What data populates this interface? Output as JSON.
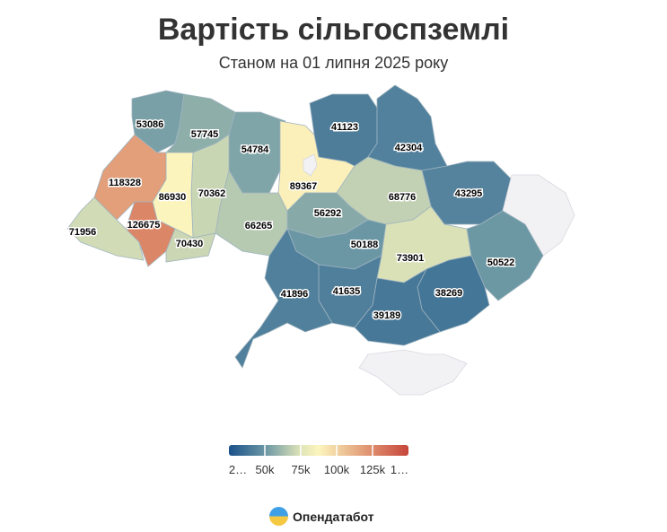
{
  "title": "Вартість сільгоспземлі",
  "subtitle": "Станом на 01 липня 2025 року",
  "brand": "Опендатабот",
  "chart_data": {
    "type": "choropleth",
    "title": "Вартість сільгоспземлі",
    "subtitle": "Станом на 01 липня 2025 року",
    "regions": [
      {
        "id": "volyn",
        "value": 53086
      },
      {
        "id": "rivne",
        "value": 57745
      },
      {
        "id": "zhytomyr",
        "value": 54784
      },
      {
        "id": "kyiv",
        "value": 89367
      },
      {
        "id": "kyiv-city",
        "value": null
      },
      {
        "id": "chernihiv",
        "value": 41123
      },
      {
        "id": "sumy",
        "value": 42304
      },
      {
        "id": "kharkiv",
        "value": 43295
      },
      {
        "id": "luhansk",
        "value": null
      },
      {
        "id": "poltava",
        "value": 68776
      },
      {
        "id": "cherkasy",
        "value": 56292
      },
      {
        "id": "vinnytsia",
        "value": 66265
      },
      {
        "id": "khmelnytskyi",
        "value": 70362
      },
      {
        "id": "ternopil",
        "value": 86930
      },
      {
        "id": "lviv",
        "value": 118328
      },
      {
        "id": "ivano-frankivsk",
        "value": 126675
      },
      {
        "id": "zakarpattia",
        "value": 71956
      },
      {
        "id": "chernivtsi",
        "value": 70430
      },
      {
        "id": "kirovohrad",
        "value": 50188
      },
      {
        "id": "dnipropetrovsk",
        "value": 73901
      },
      {
        "id": "donetsk",
        "value": 50522
      },
      {
        "id": "zaporizhzhia",
        "value": 38269
      },
      {
        "id": "kherson",
        "value": 39189
      },
      {
        "id": "mykolaiv",
        "value": 41635
      },
      {
        "id": "odesa",
        "value": 41896
      },
      {
        "id": "crimea",
        "value": null
      }
    ],
    "legend": {
      "labels": [
        "2…",
        "50k",
        "75k",
        "100k",
        "125k",
        "1…"
      ],
      "colors": [
        "#1a5189",
        "#6a96a4",
        "#dfe4b8",
        "#fdf5bd",
        "#f1d3a2",
        "#de8b6b",
        "#c6453b"
      ],
      "no_data_color": "#f2f2f5"
    }
  }
}
